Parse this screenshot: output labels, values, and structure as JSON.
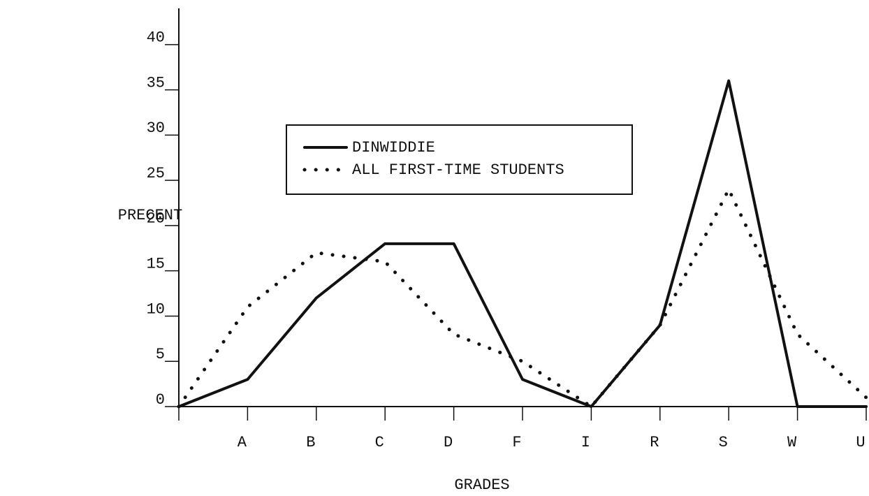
{
  "chart_data": {
    "type": "line",
    "ylabel": "PRECENT",
    "xlabel": "GRADES",
    "categories": [
      null,
      "A",
      "B",
      "C",
      "D",
      "F",
      "I",
      "R",
      "S",
      "W",
      "U"
    ],
    "series": [
      {
        "name": "DINWIDDIE",
        "color": "#111111",
        "style": "solid",
        "values": [
          0,
          3,
          12,
          18,
          18,
          3,
          0,
          9,
          36,
          0,
          0
        ]
      },
      {
        "name": "ALL FIRST-TIME STUDENTS",
        "color": "#111111",
        "style": "dotted",
        "values": [
          0,
          11,
          17,
          16,
          8,
          5,
          0,
          9,
          24,
          8,
          1
        ]
      }
    ],
    "ylim": [
      0,
      44
    ],
    "yticks": [
      0,
      5,
      10,
      15,
      20,
      25,
      30,
      35,
      40
    ],
    "grid": false,
    "legend": "top"
  }
}
